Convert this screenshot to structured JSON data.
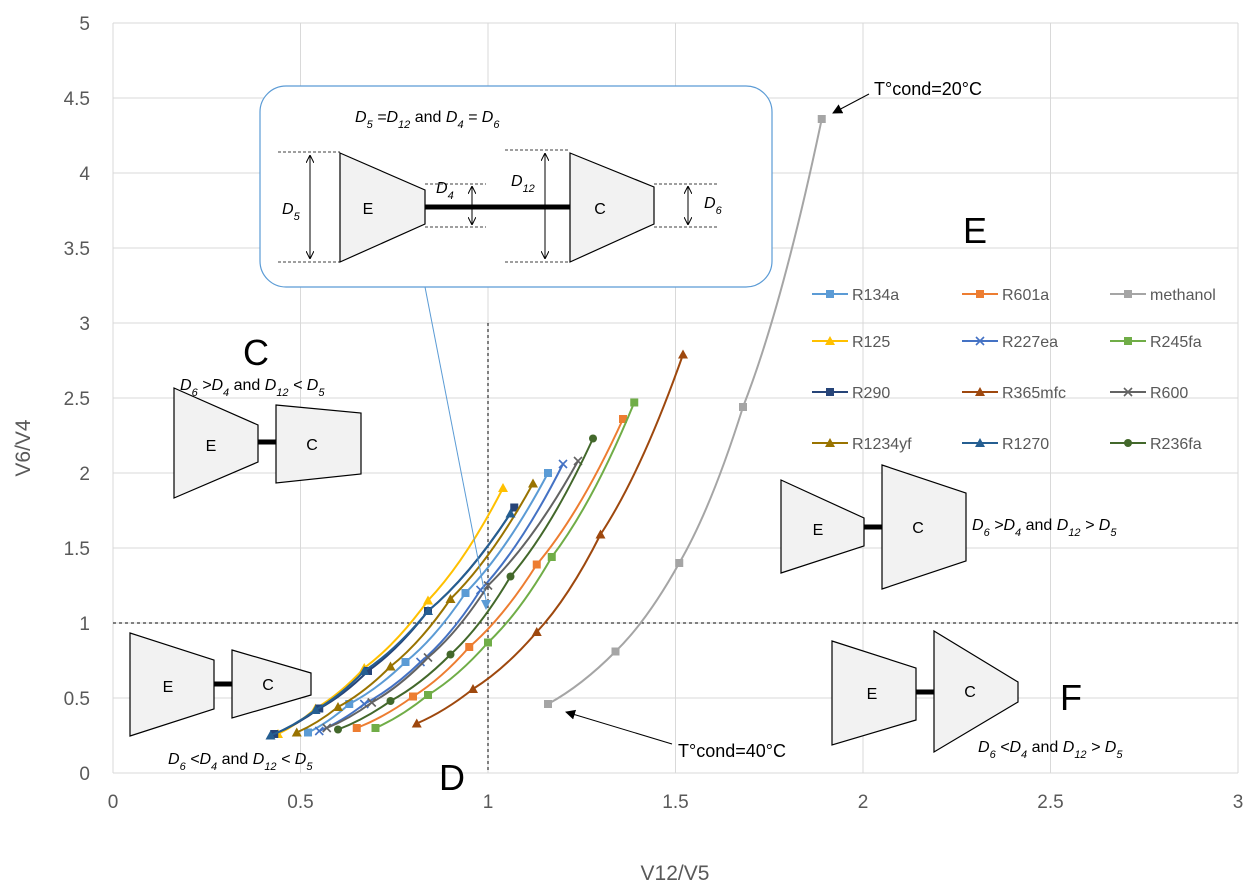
{
  "chart_data": {
    "type": "scatter",
    "xlabel": "V12/V5",
    "ylabel": "V6/V4",
    "xlim": [
      0,
      3
    ],
    "ylim": [
      0,
      5
    ],
    "x_ticks": [
      "0",
      "0.5",
      "1",
      "1.5",
      "2",
      "2.5",
      "3"
    ],
    "y_ticks": [
      "0",
      "0.5",
      "1",
      "1.5",
      "2",
      "2.5",
      "3",
      "3.5",
      "4",
      "4.5",
      "5"
    ],
    "grid": "vertical and horizontal",
    "legend_position": "right",
    "reference_lines": [
      {
        "axis": "x",
        "value": 1
      },
      {
        "axis": "y",
        "value": 1
      }
    ],
    "series": [
      {
        "name": "R134a",
        "color": "#5B9BD5",
        "marker": "square",
        "x": [
          0.52,
          0.63,
          0.78,
          0.94,
          1.16
        ],
        "y": [
          0.27,
          0.46,
          0.74,
          1.2,
          2.0
        ]
      },
      {
        "name": "R601a",
        "color": "#ED7D31",
        "marker": "square",
        "x": [
          0.65,
          0.8,
          0.95,
          1.13,
          1.36
        ],
        "y": [
          0.3,
          0.51,
          0.84,
          1.39,
          2.36
        ]
      },
      {
        "name": "methanol",
        "color": "#A5A5A5",
        "marker": "square",
        "x": [
          1.16,
          1.34,
          1.51,
          1.68,
          1.89
        ],
        "y": [
          0.46,
          0.81,
          1.4,
          2.44,
          4.36
        ]
      },
      {
        "name": "R125",
        "color": "#FFC000",
        "marker": "triangle",
        "x": [
          0.44,
          0.54,
          0.67,
          0.84,
          1.04
        ],
        "y": [
          0.26,
          0.43,
          0.7,
          1.15,
          1.9
        ]
      },
      {
        "name": "R227ea",
        "color": "#4472C4",
        "marker": "x",
        "x": [
          0.55,
          0.67,
          0.82,
          0.98,
          1.2
        ],
        "y": [
          0.28,
          0.46,
          0.74,
          1.22,
          2.06
        ]
      },
      {
        "name": "R245fa",
        "color": "#70AD47",
        "marker": "square",
        "x": [
          0.7,
          0.84,
          1.0,
          1.17,
          1.39
        ],
        "y": [
          0.3,
          0.52,
          0.87,
          1.44,
          2.47
        ]
      },
      {
        "name": "R290",
        "color": "#264478",
        "marker": "square",
        "x": [
          0.43,
          0.55,
          0.68,
          0.84,
          1.07
        ],
        "y": [
          0.26,
          0.43,
          0.68,
          1.08,
          1.77
        ]
      },
      {
        "name": "R365mfc",
        "color": "#9E480E",
        "marker": "triangle",
        "x": [
          0.81,
          0.96,
          1.13,
          1.3,
          1.52
        ],
        "y": [
          0.33,
          0.56,
          0.94,
          1.59,
          2.79
        ]
      },
      {
        "name": "R600",
        "color": "#636363",
        "marker": "x",
        "x": [
          0.57,
          0.69,
          0.84,
          1.0,
          1.24
        ],
        "y": [
          0.3,
          0.47,
          0.77,
          1.25,
          2.08
        ]
      },
      {
        "name": "R1234yf",
        "color": "#997300",
        "marker": "triangle",
        "x": [
          0.49,
          0.6,
          0.74,
          0.9,
          1.12
        ],
        "y": [
          0.27,
          0.44,
          0.71,
          1.16,
          1.93
        ]
      },
      {
        "name": "R1270",
        "color": "#255E91",
        "marker": "triangle",
        "x": [
          0.42,
          0.54,
          0.67,
          0.84,
          1.06
        ],
        "y": [
          0.25,
          0.42,
          0.68,
          1.08,
          1.73
        ]
      },
      {
        "name": "R236fa",
        "color": "#43682B",
        "marker": "circle",
        "x": [
          0.6,
          0.74,
          0.9,
          1.06,
          1.28
        ],
        "y": [
          0.29,
          0.48,
          0.79,
          1.31,
          2.23
        ]
      }
    ],
    "annotations": {
      "cond20": "T°cond=20°C",
      "cond40": "T°cond=40°C",
      "region_c": "C",
      "region_d": "D",
      "region_e": "E",
      "region_f": "F",
      "caption_box": "D5 =D12 and D4 = D6",
      "caption_c": "D6 >D4 and D12 < D5",
      "caption_d": "D6 <D4 and D12 < D5",
      "caption_e": "D6 >D4 and D12 > D5",
      "caption_f": "D6 <D4 and D12 > D5"
    },
    "diagram_labels": {
      "expander": "E",
      "compressor": "C",
      "d4": "D4",
      "d5": "D5",
      "d6": "D6",
      "d12": "D12"
    }
  }
}
